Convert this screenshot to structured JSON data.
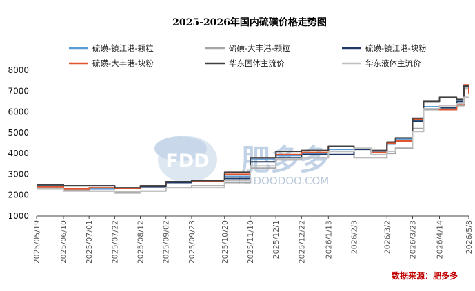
{
  "chart_data": {
    "type": "line",
    "title": "2025-2026年国内硫磺价格走势图",
    "xlabel": "",
    "ylabel": "",
    "ylim": [
      1000,
      8000
    ],
    "yticks": [
      1000,
      2000,
      3000,
      4000,
      5000,
      6000,
      7000,
      8000
    ],
    "x_tick_labels": [
      "2025/05/19",
      "2025/06/10",
      "2025/07/01",
      "2025/07/22",
      "2025/08/12",
      "2025/09/02",
      "2025/09/23",
      "2025/10/20",
      "2025/11/10",
      "2025/12/1",
      "2025/12/22",
      "2026/1/13",
      "2026/2/3",
      "2026/3/2",
      "2026/3/23",
      "2026/4/14",
      "2026/5/8"
    ],
    "x": [
      "2025/05/19",
      "2025/06/10",
      "2025/07/01",
      "2025/07/22",
      "2025/08/12",
      "2025/09/02",
      "2025/09/23",
      "2025/10/20",
      "2025/11/10",
      "2025/12/1",
      "2025/12/22",
      "2026/1/13",
      "2026/2/3",
      "2026/2/17",
      "2026/3/2",
      "2026/3/9",
      "2026/3/23",
      "2026/4/1",
      "2026/4/14",
      "2026/4/28",
      "2026/5/4",
      "2026/5/8"
    ],
    "legend_position": "top",
    "grid": false,
    "series": [
      {
        "name": "硫磺-镇江港-颗粒",
        "color": "#5b9bd5",
        "values": [
          2450,
          2300,
          2300,
          2320,
          2450,
          2600,
          2650,
          2900,
          3750,
          3900,
          4000,
          4200,
          4250,
          4100,
          4450,
          4700,
          5600,
          6250,
          6200,
          6500,
          7200,
          6900
        ]
      },
      {
        "name": "硫磺-大丰港-颗粒",
        "color": "#a6a6a6",
        "values": [
          2350,
          2250,
          2200,
          2150,
          2200,
          2350,
          2450,
          2600,
          3300,
          3700,
          3800,
          4100,
          3800,
          3800,
          4000,
          4250,
          5200,
          6100,
          6150,
          6300,
          7100,
          6950
        ]
      },
      {
        "name": "硫磺-镇江港-块粉",
        "color": "#1f3864",
        "values": [
          2500,
          2450,
          2450,
          2330,
          2400,
          2600,
          2700,
          2800,
          3600,
          3800,
          3950,
          3950,
          4200,
          4050,
          4500,
          4600,
          5550,
          6150,
          6200,
          6500,
          7200,
          7000
        ]
      },
      {
        "name": "硫磺-大丰港-块粉",
        "color": "#e0552b",
        "values": [
          2400,
          2300,
          2350,
          2320,
          2450,
          2650,
          2650,
          3000,
          3800,
          3950,
          4050,
          4350,
          4250,
          4050,
          4500,
          4600,
          5650,
          6150,
          6100,
          6350,
          7300,
          6850
        ]
      },
      {
        "name": "华东固体主流价",
        "color": "#404040",
        "values": [
          2500,
          2450,
          2450,
          2350,
          2450,
          2650,
          2700,
          3100,
          3800,
          4100,
          4150,
          4350,
          4250,
          4150,
          4550,
          4750,
          5700,
          6500,
          6700,
          6600,
          7250,
          7250
        ]
      },
      {
        "name": "华东液体主流价",
        "color": "#bfbfbf",
        "values": [
          2300,
          2200,
          2200,
          2100,
          2200,
          2350,
          2350,
          2700,
          3400,
          3750,
          3800,
          4100,
          4250,
          3950,
          4100,
          4300,
          5050,
          6150,
          6300,
          6400,
          6700,
          6700
        ]
      }
    ]
  },
  "watermark": {
    "logo_text": "FDD",
    "brand_text": "肥多多",
    "url_text": "FEIDOODOO.COM"
  },
  "source_label": "数据来源：肥多多"
}
